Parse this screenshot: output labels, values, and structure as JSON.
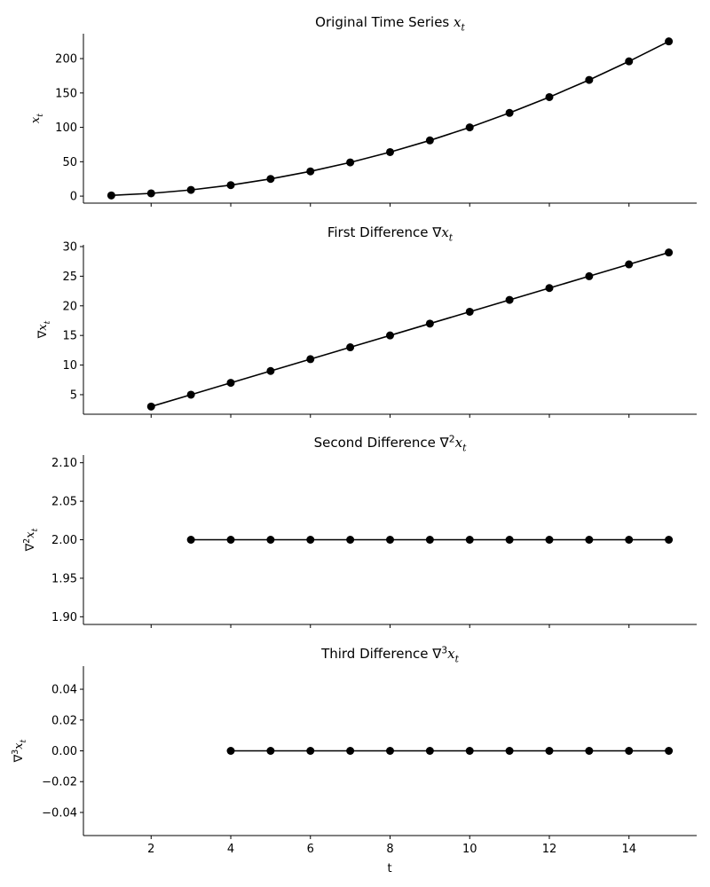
{
  "figure": {
    "xlabel": "t",
    "line_color": "#000000",
    "marker": "filled-circle"
  },
  "chart_data": [
    {
      "type": "line",
      "title": "Original Time Series",
      "title_math": {
        "base": "x",
        "sub": "t",
        "sup": "",
        "prefix": ""
      },
      "ylabel_math": {
        "base": "x",
        "sub": "t",
        "sup": "",
        "prefix": ""
      },
      "x": [
        1,
        2,
        3,
        4,
        5,
        6,
        7,
        8,
        9,
        10,
        11,
        12,
        13,
        14,
        15
      ],
      "y": [
        1,
        4,
        9,
        16,
        25,
        36,
        49,
        64,
        81,
        100,
        121,
        144,
        169,
        196,
        225
      ],
      "xlim": [
        0.3,
        15.7
      ],
      "ylim": [
        -10.2,
        236.2
      ],
      "yticks": [
        0,
        50,
        100,
        150,
        200
      ],
      "ytick_labels": [
        "0",
        "50",
        "100",
        "150",
        "200"
      ]
    },
    {
      "type": "line",
      "title": "First Difference",
      "title_math": {
        "base": "x",
        "sub": "t",
        "sup": "",
        "prefix": "∇"
      },
      "ylabel_math": {
        "base": "x",
        "sub": "t",
        "sup": "",
        "prefix": "∇"
      },
      "x": [
        2,
        3,
        4,
        5,
        6,
        7,
        8,
        9,
        10,
        11,
        12,
        13,
        14,
        15
      ],
      "y": [
        3,
        5,
        7,
        9,
        11,
        13,
        15,
        17,
        19,
        21,
        23,
        25,
        27,
        29
      ],
      "xlim": [
        0.3,
        15.7
      ],
      "ylim": [
        1.7,
        30.3
      ],
      "yticks": [
        5,
        10,
        15,
        20,
        25,
        30
      ],
      "ytick_labels": [
        "5",
        "10",
        "15",
        "20",
        "25",
        "30"
      ]
    },
    {
      "type": "line",
      "title": "Second Difference",
      "title_math": {
        "base": "x",
        "sub": "t",
        "sup": "2",
        "prefix": "∇"
      },
      "ylabel_math": {
        "base": "x",
        "sub": "t",
        "sup": "2",
        "prefix": "∇"
      },
      "x": [
        3,
        4,
        5,
        6,
        7,
        8,
        9,
        10,
        11,
        12,
        13,
        14,
        15
      ],
      "y": [
        2,
        2,
        2,
        2,
        2,
        2,
        2,
        2,
        2,
        2,
        2,
        2,
        2
      ],
      "xlim": [
        0.3,
        15.7
      ],
      "ylim": [
        1.89,
        2.11
      ],
      "yticks": [
        1.9,
        1.95,
        2.0,
        2.05,
        2.1
      ],
      "ytick_labels": [
        "1.90",
        "1.95",
        "2.00",
        "2.05",
        "2.10"
      ]
    },
    {
      "type": "line",
      "title": "Third Difference",
      "title_math": {
        "base": "x",
        "sub": "t",
        "sup": "3",
        "prefix": "∇"
      },
      "ylabel_math": {
        "base": "x",
        "sub": "t",
        "sup": "3",
        "prefix": "∇"
      },
      "x": [
        4,
        5,
        6,
        7,
        8,
        9,
        10,
        11,
        12,
        13,
        14,
        15
      ],
      "y": [
        0,
        0,
        0,
        0,
        0,
        0,
        0,
        0,
        0,
        0,
        0,
        0
      ],
      "xlim": [
        0.3,
        15.7
      ],
      "ylim": [
        -0.055,
        0.055
      ],
      "yticks": [
        -0.04,
        -0.02,
        0.0,
        0.02,
        0.04
      ],
      "ytick_labels": [
        "−0.04",
        "−0.02",
        "0.00",
        "0.02",
        "0.04"
      ],
      "xticks": [
        2,
        4,
        6,
        8,
        10,
        12,
        14
      ],
      "xtick_labels": [
        "2",
        "4",
        "6",
        "8",
        "10",
        "12",
        "14"
      ]
    }
  ]
}
